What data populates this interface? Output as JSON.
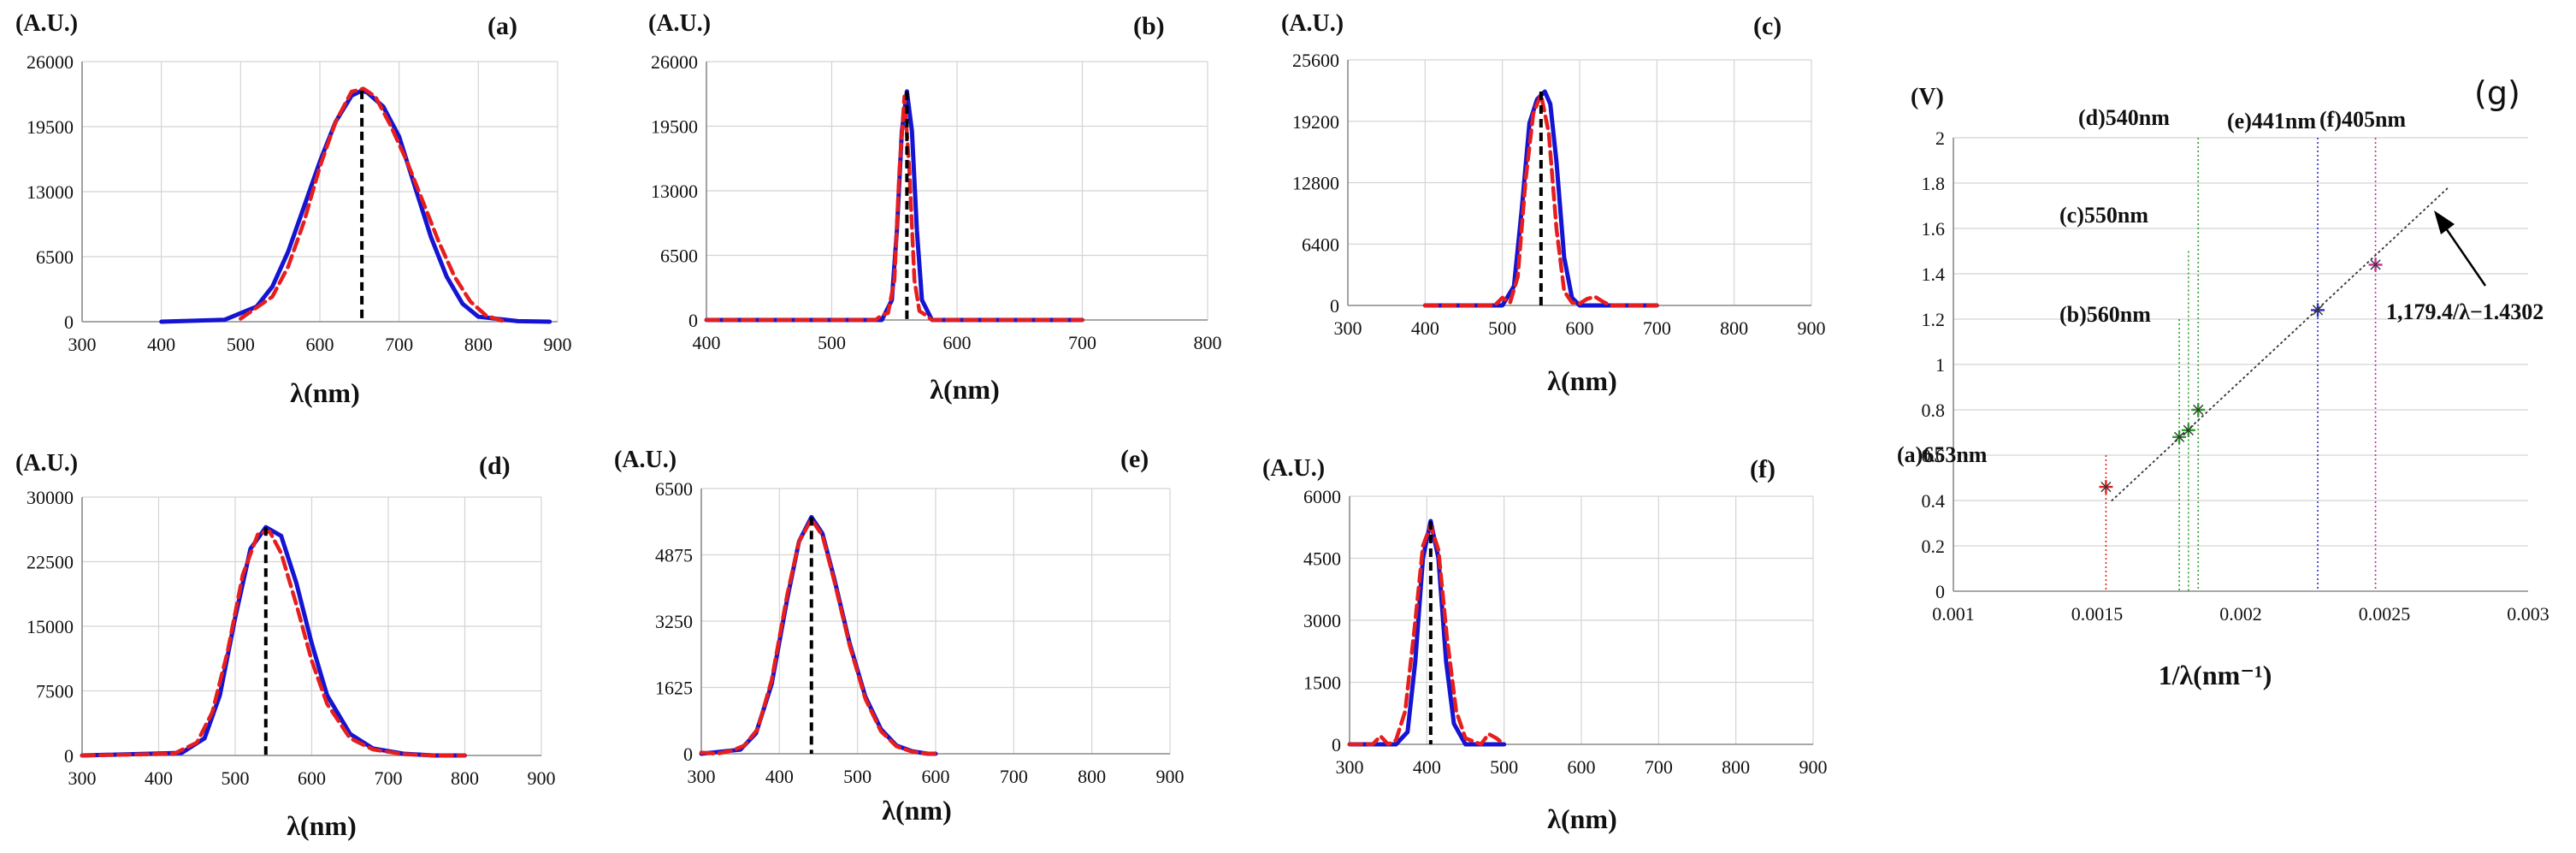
{
  "colors": {
    "measured": "#1414d2",
    "fit": "#e61e1e",
    "peak": "#000000",
    "grid": "#d4d4d4",
    "axis": "#8a8a8a"
  },
  "chart_data": [
    {
      "id": "a",
      "type": "line",
      "title": "(a)",
      "ylabel": "(A.U.)",
      "xlabel": "λ(nm)",
      "xlim": [
        300,
        900
      ],
      "xticks": [
        300,
        400,
        500,
        600,
        700,
        800,
        900
      ],
      "xtick_labels": [
        "300",
        "400",
        "500",
        "600",
        "700",
        "800",
        "900"
      ],
      "ylim": [
        0,
        26000
      ],
      "yticks": [
        0,
        6500,
        13000,
        19500,
        26000
      ],
      "ytick_labels": [
        "0",
        "6500",
        "13000",
        "19500",
        "26000"
      ],
      "peak_nm": 653,
      "peak_value": 23100,
      "series": [
        {
          "name": "measured",
          "style": "solid",
          "x": [
            400,
            480,
            520,
            540,
            560,
            580,
            600,
            620,
            640,
            653,
            660,
            680,
            700,
            720,
            740,
            760,
            780,
            800,
            850,
            890
          ],
          "y": [
            0,
            200,
            1500,
            3500,
            7000,
            11500,
            16000,
            20000,
            22600,
            23100,
            22900,
            21500,
            18500,
            13500,
            8500,
            4500,
            1800,
            500,
            50,
            0
          ]
        },
        {
          "name": "fit",
          "style": "dashed",
          "x": [
            500,
            540,
            560,
            580,
            600,
            620,
            640,
            655,
            670,
            690,
            710,
            730,
            750,
            770,
            790,
            810,
            830
          ],
          "y": [
            300,
            2500,
            5500,
            10000,
            15500,
            20000,
            23000,
            23300,
            22500,
            19500,
            16000,
            12000,
            8000,
            4500,
            2000,
            600,
            100
          ]
        }
      ]
    },
    {
      "id": "b",
      "type": "line",
      "title": "(b)",
      "ylabel": "(A.U.)",
      "xlabel": "λ(nm)",
      "xlim": [
        400,
        800
      ],
      "xticks": [
        400,
        500,
        600,
        700,
        800
      ],
      "xtick_labels": [
        "400",
        "500",
        "600",
        "700",
        "800"
      ],
      "ylim": [
        0,
        26000
      ],
      "yticks": [
        0,
        6500,
        13000,
        19500,
        26000
      ],
      "ytick_labels": [
        "0",
        "6500",
        "13000",
        "19500",
        "26000"
      ],
      "peak_nm": 560,
      "peak_value": 23000,
      "series": [
        {
          "name": "measured",
          "style": "solid",
          "x": [
            400,
            540,
            548,
            552,
            556,
            560,
            564,
            568,
            572,
            580,
            700
          ],
          "y": [
            0,
            0,
            2000,
            9000,
            19000,
            23000,
            19000,
            9000,
            2000,
            0,
            0
          ]
        },
        {
          "name": "fit",
          "style": "dashed",
          "x": [
            400,
            535,
            540,
            545,
            550,
            554,
            558,
            562,
            566,
            570,
            575,
            580,
            585,
            700
          ],
          "y": [
            0,
            0,
            500,
            700,
            4000,
            15000,
            22500,
            15000,
            4000,
            900,
            500,
            0,
            0,
            0
          ]
        }
      ]
    },
    {
      "id": "c",
      "type": "line",
      "title": "(c)",
      "ylabel": "(A.U.)",
      "xlabel": "λ(nm)",
      "xlim": [
        300,
        900
      ],
      "xticks": [
        300,
        400,
        500,
        600,
        700,
        800,
        900
      ],
      "xtick_labels": [
        "300",
        "400",
        "500",
        "600",
        "700",
        "800",
        "900"
      ],
      "ylim": [
        0,
        25600
      ],
      "yticks": [
        0,
        6400,
        12800,
        19200,
        25600
      ],
      "ytick_labels": [
        "0",
        "6400",
        "12800",
        "19200",
        "25600"
      ],
      "peak_nm": 550,
      "peak_value": 22300,
      "series": [
        {
          "name": "measured",
          "style": "solid",
          "x": [
            400,
            500,
            515,
            525,
            535,
            545,
            555,
            562,
            570,
            580,
            590,
            600,
            700
          ],
          "y": [
            0,
            0,
            2000,
            10000,
            19000,
            21500,
            22300,
            21000,
            15000,
            5000,
            800,
            0,
            0
          ]
        },
        {
          "name": "fit",
          "style": "dashed",
          "x": [
            400,
            490,
            500,
            510,
            520,
            530,
            540,
            550,
            560,
            570,
            580,
            590,
            600,
            610,
            620,
            630,
            640,
            700
          ],
          "y": [
            0,
            0,
            800,
            300,
            3000,
            13000,
            20000,
            22000,
            18000,
            8000,
            1500,
            300,
            200,
            700,
            900,
            400,
            0,
            0
          ]
        }
      ]
    },
    {
      "id": "d",
      "type": "line",
      "title": "(d)",
      "ylabel": "(A.U.)",
      "xlabel": "λ(nm)",
      "xlim": [
        300,
        900
      ],
      "xticks": [
        300,
        400,
        500,
        600,
        700,
        800,
        900
      ],
      "xtick_labels": [
        "300",
        "400",
        "500",
        "600",
        "700",
        "800",
        "900"
      ],
      "ylim": [
        0,
        30000
      ],
      "yticks": [
        0,
        7500,
        15000,
        22500,
        30000
      ],
      "ytick_labels": [
        "0",
        "7500",
        "15000",
        "22500",
        "30000"
      ],
      "peak_nm": 540,
      "peak_value": 26500,
      "series": [
        {
          "name": "measured",
          "style": "solid",
          "x": [
            300,
            430,
            460,
            480,
            500,
            520,
            540,
            560,
            580,
            600,
            620,
            650,
            680,
            720,
            760,
            800
          ],
          "y": [
            0,
            300,
            2000,
            7000,
            16000,
            24000,
            26500,
            25500,
            20000,
            13000,
            7000,
            2500,
            800,
            200,
            0,
            0
          ]
        },
        {
          "name": "fit",
          "style": "dashed",
          "x": [
            300,
            420,
            450,
            470,
            490,
            510,
            530,
            545,
            560,
            580,
            600,
            620,
            650,
            680,
            720,
            760,
            800
          ],
          "y": [
            0,
            200,
            1500,
            5000,
            12000,
            21000,
            25800,
            26000,
            23500,
            17500,
            11000,
            6000,
            2000,
            700,
            150,
            0,
            0
          ]
        }
      ]
    },
    {
      "id": "e",
      "type": "line",
      "title": "(e)",
      "ylabel": "(A.U.)",
      "xlabel": "λ(nm)",
      "xlim": [
        300,
        900
      ],
      "xticks": [
        300,
        400,
        500,
        600,
        700,
        800,
        900
      ],
      "xtick_labels": [
        "300",
        "400",
        "500",
        "600",
        "700",
        "800",
        "900"
      ],
      "ylim": [
        0,
        6500
      ],
      "yticks": [
        0,
        1625,
        3250,
        4875,
        6500
      ],
      "ytick_labels": [
        "0",
        "1625",
        "3250",
        "4875",
        "6500"
      ],
      "peak_nm": 441,
      "peak_value": 5800,
      "series": [
        {
          "name": "measured",
          "style": "solid",
          "x": [
            300,
            350,
            370,
            390,
            410,
            425,
            441,
            455,
            470,
            490,
            510,
            530,
            550,
            570,
            590,
            600
          ],
          "y": [
            0,
            100,
            500,
            1700,
            3800,
            5200,
            5800,
            5400,
            4300,
            2700,
            1400,
            600,
            200,
            60,
            0,
            0
          ]
        },
        {
          "name": "fit",
          "style": "dashed",
          "x": [
            300,
            320,
            340,
            355,
            372,
            390,
            410,
            425,
            441,
            455,
            470,
            490,
            510,
            530,
            550,
            570,
            590,
            600
          ],
          "y": [
            30,
            0,
            80,
            200,
            600,
            1800,
            3900,
            5200,
            5750,
            5350,
            4250,
            2650,
            1350,
            550,
            180,
            50,
            0,
            0
          ]
        }
      ]
    },
    {
      "id": "f",
      "type": "line",
      "title": "(f)",
      "ylabel": "(A.U.)",
      "xlabel": "λ(nm)",
      "xlim": [
        300,
        900
      ],
      "xticks": [
        300,
        400,
        500,
        600,
        700,
        800,
        900
      ],
      "xtick_labels": [
        "300",
        "400",
        "500",
        "600",
        "700",
        "800",
        "900"
      ],
      "ylim": [
        0,
        6000
      ],
      "yticks": [
        0,
        1500,
        3000,
        4500,
        6000
      ],
      "ytick_labels": [
        "0",
        "1500",
        "3000",
        "4500",
        "6000"
      ],
      "peak_nm": 405,
      "peak_value": 5400,
      "series": [
        {
          "name": "measured",
          "style": "solid",
          "x": [
            300,
            360,
            375,
            385,
            395,
            405,
            415,
            425,
            435,
            450,
            500
          ],
          "y": [
            0,
            0,
            300,
            2000,
            4500,
            5400,
            4500,
            2000,
            500,
            0,
            0
          ]
        },
        {
          "name": "fit",
          "style": "dashed",
          "x": [
            300,
            330,
            340,
            350,
            360,
            372,
            384,
            395,
            405,
            415,
            426,
            438,
            450,
            470,
            480,
            490,
            500
          ],
          "y": [
            0,
            0,
            200,
            0,
            100,
            800,
            2800,
            4800,
            5300,
            4700,
            2600,
            800,
            150,
            0,
            250,
            150,
            0
          ]
        }
      ]
    },
    {
      "id": "g",
      "type": "scatter",
      "title": "(g)",
      "ylabel": "(V)",
      "xlabel": "1/λ(nm⁻¹)",
      "xlim": [
        0.001,
        0.003
      ],
      "xticks": [
        0.001,
        0.0015,
        0.002,
        0.0025,
        0.003
      ],
      "xtick_labels": [
        "0.001",
        "0.0015",
        "0.002",
        "0.0025",
        "0.003"
      ],
      "ylim": [
        0,
        2
      ],
      "yticks": [
        0,
        0.2,
        0.4,
        0.6,
        0.8,
        1,
        1.2,
        1.4,
        1.6,
        1.8,
        2
      ],
      "ytick_labels": [
        "0",
        "0.2",
        "0.4",
        "0.6",
        "0.8",
        "1",
        "1.2",
        "1.4",
        "1.6",
        "1.8",
        "2"
      ],
      "fit_line": {
        "label": "1,179.4/λ−1.4302",
        "x_range": [
          0.00155,
          0.00272
        ]
      },
      "points": [
        {
          "label": "(a)653nm",
          "x": 0.001531,
          "y": 0.46,
          "color": "#e61e1e",
          "line_top": 0.6
        },
        {
          "label": "(b)560nm",
          "x": 0.001786,
          "y": 0.68,
          "color": "#2e9e2e",
          "line_top": 1.2
        },
        {
          "label": "(c)550nm",
          "x": 0.001818,
          "y": 0.71,
          "color": "#2e9e2e",
          "line_top": 1.5
        },
        {
          "label": "(d)540nm",
          "x": 0.001852,
          "y": 0.8,
          "color": "#2e9e2e",
          "line_top": 2.0
        },
        {
          "label": "(e)441nm",
          "x": 0.002268,
          "y": 1.24,
          "color": "#2d2dbe",
          "line_top": 2.0
        },
        {
          "label": "(f)405nm",
          "x": 0.002469,
          "y": 1.44,
          "color": "#c42e8e",
          "line_top": 2.0
        }
      ]
    }
  ]
}
